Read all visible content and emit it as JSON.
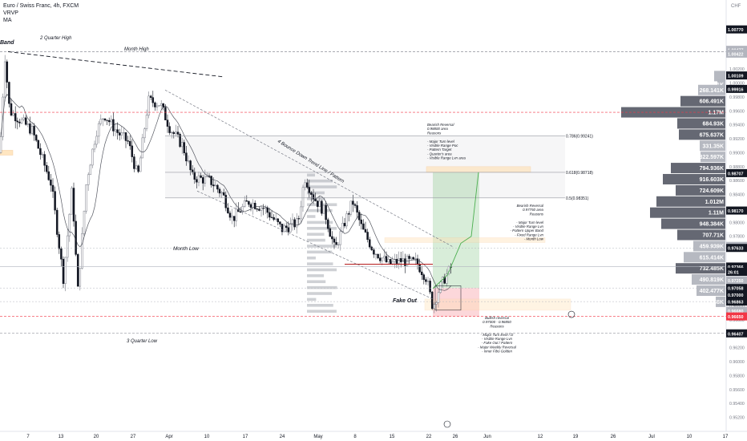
{
  "legend": {
    "title": "Euro / Swiss Franc, 4h, FXCM",
    "indicator_1": "VRVP",
    "indicator_2": "MA"
  },
  "chart_data": {
    "type": "candlestick",
    "currency": "CHF",
    "ylim": [
      0.95,
      1.011
    ],
    "y_ticks": [
      0.952,
      0.954,
      0.956,
      0.958,
      0.96,
      0.962,
      0.964,
      0.966,
      0.968,
      0.97,
      0.972,
      0.974,
      0.976,
      0.978,
      0.98,
      0.982,
      0.984,
      0.986,
      0.988,
      0.99,
      0.992,
      0.994,
      0.996,
      0.998,
      1.0,
      1.002
    ],
    "y_tick_labels": [
      "0.95200",
      "0.95400",
      "0.95600",
      "0.95800",
      "0.96000",
      "0.96200",
      "0.96400",
      "0.96600",
      "0.96800",
      "0.97000",
      "0.97200",
      "0.97400",
      "0.97600",
      "0.97800",
      "0.98000",
      "0.98200",
      "0.98400",
      "0.98600",
      "0.98800",
      "0.99000",
      "0.99200",
      "0.99400",
      "0.99600",
      "0.99800",
      "1.00000",
      "1.00200"
    ],
    "x_ticks": [
      "7",
      "13",
      "20",
      "27",
      "Apr",
      "10",
      "17",
      "24",
      "May",
      "8",
      "15",
      "22",
      "26",
      "Jun",
      "12",
      "19",
      "26",
      "Jul",
      "10",
      "17"
    ],
    "price_tags": [
      {
        "label": "1.00770",
        "value": 1.0077,
        "color": "#131722"
      },
      {
        "label": "1.00477",
        "value": 1.00477,
        "color": "#b2b5be"
      },
      {
        "label": "1.00422",
        "value": 1.00422,
        "color": "#b2b5be"
      },
      {
        "label": "1.00109",
        "value": 1.00109,
        "color": "#131722"
      },
      {
        "label": "0.99916",
        "value": 0.99916,
        "color": "#131722"
      },
      {
        "label": "0.98707",
        "value": 0.98707,
        "color": "#131722"
      },
      {
        "label": "0.98170",
        "value": 0.9817,
        "color": "#131722"
      },
      {
        "label": "0.97662",
        "value": 0.97662,
        "color": "#b2b5be"
      },
      {
        "label": "0.97633",
        "value": 0.97633,
        "color": "#131722"
      },
      {
        "label": "0.97366",
        "value": 0.97366,
        "color": "#131722"
      },
      {
        "label": "26:01",
        "value": 0.9729,
        "color": "#131722"
      },
      {
        "label": "0.97250",
        "value": 0.97168,
        "color": "#b2b5be"
      },
      {
        "label": "0.97058",
        "value": 0.97058,
        "color": "#131722"
      },
      {
        "label": "0.97000",
        "value": 0.96965,
        "color": "#131722"
      },
      {
        "label": "0.96863",
        "value": 0.96863,
        "color": "#131722"
      },
      {
        "label": "0.96680",
        "value": 0.96733,
        "color": "#b2b5be"
      },
      {
        "label": "0.96650",
        "value": 0.9665,
        "color": "#f23645"
      },
      {
        "label": "0.96407",
        "value": 0.96407,
        "color": "#131722"
      }
    ],
    "volume_profile": [
      {
        "label": "1K",
        "value": 0.9998,
        "len": 10
      },
      {
        "label": "",
        "value": 1.001,
        "len": 14
      },
      {
        "label": "268.141K",
        "value": 0.999,
        "len": 34
      },
      {
        "label": "606.491K",
        "value": 0.9974,
        "len": 56
      },
      {
        "label": "1.17M",
        "value": 0.9958,
        "len": 130
      },
      {
        "label": "684.93K",
        "value": 0.9942,
        "len": 60
      },
      {
        "label": "675.637K",
        "value": 0.9926,
        "len": 58
      },
      {
        "label": "331.35K",
        "value": 0.991,
        "len": 32
      },
      {
        "label": "322.597K",
        "value": 0.9894,
        "len": 31
      },
      {
        "label": "794.936K",
        "value": 0.9878,
        "len": 68
      },
      {
        "label": "916.603K",
        "value": 0.9862,
        "len": 78
      },
      {
        "label": "724.609K",
        "value": 0.9846,
        "len": 62
      },
      {
        "label": "1.012M",
        "value": 0.983,
        "len": 86
      },
      {
        "label": "1.11M",
        "value": 0.9814,
        "len": 94
      },
      {
        "label": "948.384K",
        "value": 0.9798,
        "len": 80
      },
      {
        "label": "707.71K",
        "value": 0.9782,
        "len": 60
      },
      {
        "label": "459.939K",
        "value": 0.9766,
        "len": 40
      },
      {
        "label": "615.414K",
        "value": 0.975,
        "len": 52
      },
      {
        "label": "732.485K",
        "value": 0.9734,
        "len": 62
      },
      {
        "label": "490.819K",
        "value": 0.9718,
        "len": 42
      },
      {
        "label": "402.477K",
        "value": 0.9702,
        "len": 36
      },
      {
        "label": "38K",
        "value": 0.9686,
        "len": 12
      }
    ],
    "fib_levels": [
      {
        "label": "0.786(0.99241)",
        "value": 0.99241
      },
      {
        "label": "0.618(0.98718)",
        "value": 0.98718
      },
      {
        "label": "0.5(0.98351)",
        "value": 0.98351
      }
    ],
    "annotations": {
      "band": "Band",
      "quarter_high": "2 Quarter High",
      "month_high": "Month High",
      "month_low": "Month Low",
      "quarter_low": "3 Quarter Low",
      "trendline": "4 Bounce Down Trend Line / Pattern",
      "fake_out": "Fake Out",
      "bearish_1": [
        "Bearish Reversal",
        "0.98800 area",
        "Reasons",
        "",
        "- Major Turn level",
        "- Visible Range Poc",
        "- Pattern Target",
        "- Quarter's area",
        "- Visible Range Lvn area"
      ],
      "bearish_2": [
        "Bearish Reversal",
        "0.97750 area",
        "Reasons",
        "",
        "- Major Turn level",
        "- Visible Range Lvn",
        "- Pattern Upper Band",
        "- Fixed Range Lvn",
        "- Month Low"
      ],
      "bullish": [
        "Bullish reversal",
        "0.97000 - 0.96850",
        "Reasons",
        "",
        "- Major Turn level / D",
        "- Visible Range Lvn",
        "- Fake Out / Pattern",
        "- Major Weekly Reversal",
        "- Inner Fibo Golden"
      ]
    }
  }
}
